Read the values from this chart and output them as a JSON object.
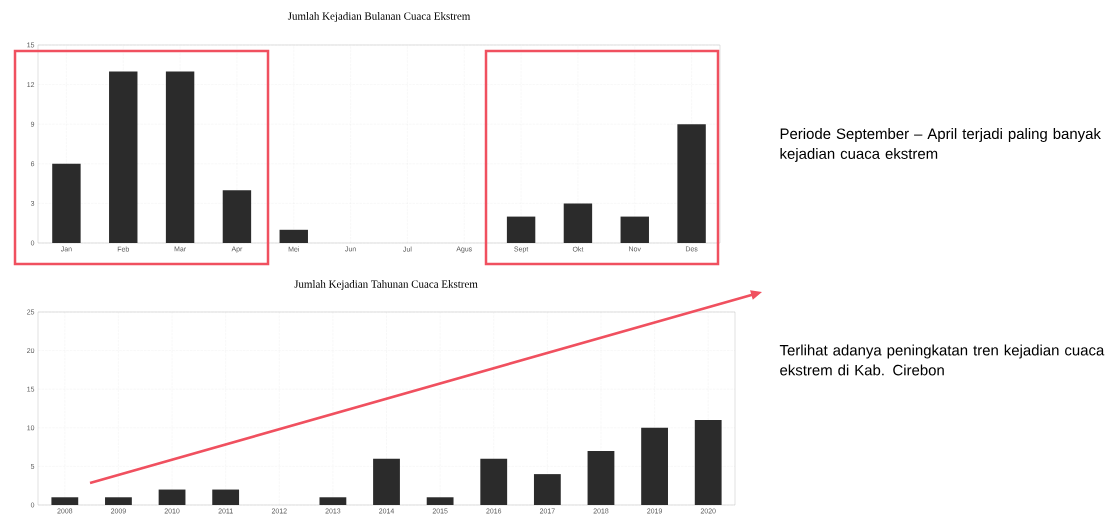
{
  "chart_data": [
    {
      "type": "bar",
      "title": "Jumlah Kejadian Bulanan Cuaca Ekstrem",
      "categories": [
        "Jan",
        "Feb",
        "Mar",
        "Apr",
        "Mei",
        "Jun",
        "Jul",
        "Agus",
        "Sept",
        "Okt",
        "Nov",
        "Des"
      ],
      "values": [
        6,
        13,
        13,
        4,
        1,
        0,
        0,
        0,
        2,
        3,
        2,
        9
      ],
      "color": "#2b2b2b",
      "ylim": [
        0,
        15
      ],
      "yticks": [
        0,
        3,
        6,
        9,
        12,
        15
      ],
      "grid": true,
      "annotations": [
        "Periode September – April terjadi paling banyak kejadian cuaca ekstrem"
      ]
    },
    {
      "type": "bar",
      "title": "Jumlah Kejadian Tahunan Cuaca Ekstrem",
      "categories": [
        "2008",
        "2009",
        "2010",
        "2011",
        "2012",
        "2013",
        "2014",
        "2015",
        "2016",
        "2017",
        "2018",
        "2019",
        "2020"
      ],
      "values": [
        1,
        1,
        2,
        2,
        0,
        1,
        6,
        1,
        6,
        4,
        7,
        10,
        11
      ],
      "color": "#2b2b2b",
      "ylim": [
        0,
        25
      ],
      "yticks": [
        0,
        5,
        10,
        15,
        20,
        25
      ],
      "grid": true,
      "annotations": [
        "Terlihat adanya peningkatan tren kejadian cuaca ekstrem di Kab. Cirebon"
      ]
    }
  ]
}
